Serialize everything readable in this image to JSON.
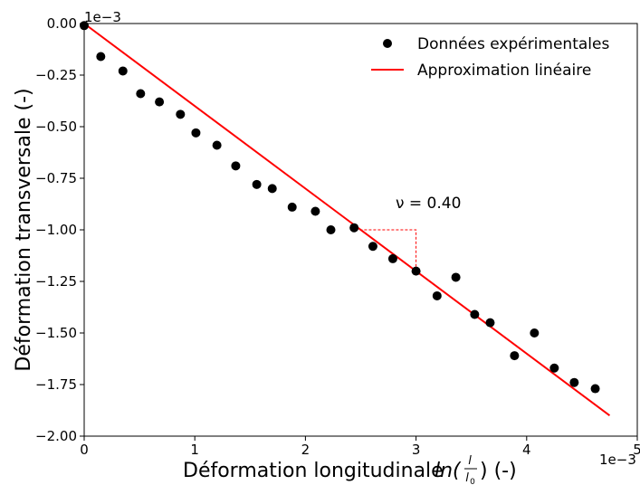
{
  "chart_data": {
    "type": "scatter",
    "x_multiplier_label": "1e−3",
    "y_multiplier_label": "1e−3",
    "xlabel_prefix": "Déformation longitudinale ",
    "xlabel_math": "ln(",
    "xlabel_frac_num": "l",
    "xlabel_frac_den": "l",
    "xlabel_frac_den_sub": "0",
    "xlabel_suffix": ") (-)",
    "ylabel": "Déformation transversale (-)",
    "xlim": [
      0,
      5
    ],
    "ylim": [
      -2.0,
      0.0
    ],
    "x_ticks": [
      0,
      1,
      2,
      3,
      4,
      5
    ],
    "x_tick_labels": [
      "0",
      "1",
      "2",
      "3",
      "4",
      "5"
    ],
    "y_ticks": [
      0.0,
      -0.25,
      -0.5,
      -0.75,
      -1.0,
      -1.25,
      -1.5,
      -1.75,
      -2.0
    ],
    "y_tick_labels": [
      "0.00",
      "−0.25",
      "−0.50",
      "−0.75",
      "−1.00",
      "−1.25",
      "−1.50",
      "−1.75",
      "−2.00"
    ],
    "grid": false,
    "legend_position": "top-right",
    "series": [
      {
        "name": "Données expérimentales",
        "kind": "scatter",
        "color": "#000000",
        "x": [
          0.0,
          0.15,
          0.35,
          0.51,
          0.68,
          0.87,
          1.01,
          1.2,
          1.37,
          1.56,
          1.7,
          1.88,
          2.09,
          2.23,
          2.44,
          2.61,
          2.79,
          3.0,
          3.19,
          3.36,
          3.53,
          3.67,
          3.89,
          4.07,
          4.25,
          4.43,
          4.62
        ],
        "y": [
          -0.01,
          -0.16,
          -0.23,
          -0.34,
          -0.38,
          -0.44,
          -0.53,
          -0.59,
          -0.69,
          -0.78,
          -0.8,
          -0.89,
          -0.91,
          -1.0,
          -0.99,
          -1.08,
          -1.14,
          -1.2,
          -1.32,
          -1.23,
          -1.41,
          -1.45,
          -1.61,
          -1.5,
          -1.67,
          -1.74,
          -1.77
        ]
      },
      {
        "name": "Approximation linéaire",
        "kind": "line",
        "color": "#ff0000",
        "x": [
          0.0,
          4.75
        ],
        "y": [
          0.0,
          -1.9
        ]
      }
    ],
    "annotation": {
      "text": "ν = 0.40",
      "color": "#ff0000",
      "triangle": {
        "x0": 2.45,
        "y0": -1.0,
        "x1": 3.0,
        "y1": -1.2
      }
    }
  }
}
